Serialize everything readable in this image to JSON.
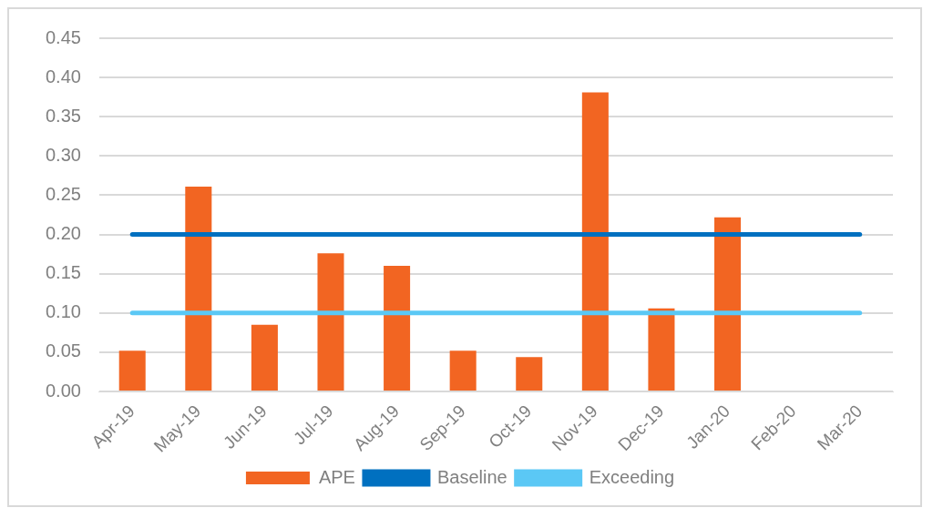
{
  "chart_data": {
    "type": "bar",
    "categories": [
      "Apr-19",
      "May-19",
      "Jun-19",
      "Jul-19",
      "Aug-19",
      "Sep-19",
      "Oct-19",
      "Nov-19",
      "Dec-19",
      "Jan-20",
      "Feb-20",
      "Mar-20"
    ],
    "series": [
      {
        "name": "APE",
        "color": "#f26522",
        "values": [
          0.052,
          0.261,
          0.085,
          0.176,
          0.16,
          0.052,
          0.044,
          0.381,
          0.106,
          0.222,
          null,
          null
        ]
      },
      {
        "name": "Baseline",
        "type": "line",
        "color": "#0070c0",
        "values": [
          0.2,
          0.2,
          0.2,
          0.2,
          0.2,
          0.2,
          0.2,
          0.2,
          0.2,
          0.2,
          0.2,
          0.2
        ]
      },
      {
        "name": "Exceeding",
        "type": "line",
        "color": "#5bc8f5",
        "values": [
          0.1,
          0.1,
          0.1,
          0.1,
          0.1,
          0.1,
          0.1,
          0.1,
          0.1,
          0.1,
          0.1,
          0.1
        ]
      }
    ],
    "ylim": [
      0,
      0.45
    ],
    "yticks": [
      {
        "value": 0,
        "label": "0.00"
      },
      {
        "value": 0.05,
        "label": "0.05"
      },
      {
        "value": 0.1,
        "label": "0.10"
      },
      {
        "value": 0.15,
        "label": "0.15"
      },
      {
        "value": 0.2,
        "label": "0.20"
      },
      {
        "value": 0.25,
        "label": "0.25"
      },
      {
        "value": 0.3,
        "label": "0.30"
      },
      {
        "value": 0.35,
        "label": "0.35"
      },
      {
        "value": 0.4,
        "label": "0.40"
      },
      {
        "value": 0.45,
        "label": "0.45"
      }
    ],
    "grid": "y",
    "legend": "bottom",
    "marker": "none",
    "line_style": "solid"
  }
}
